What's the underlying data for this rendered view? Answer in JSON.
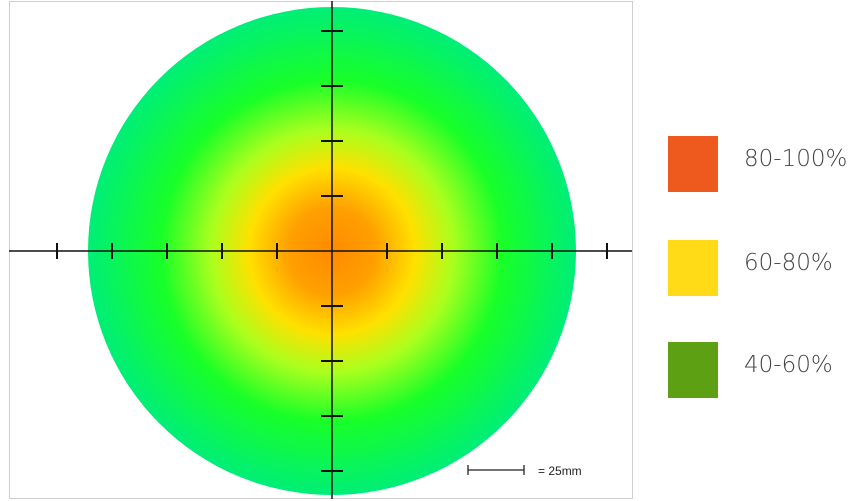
{
  "chart_data": {
    "type": "heatmap",
    "shape": "circular",
    "scale_bar": {
      "label": "= 25mm",
      "length_mm": 25
    },
    "axes": {
      "tick_spacing_mm": 25,
      "grid": false
    },
    "legend": [
      {
        "label": "80-100%",
        "color": "#ee5a1e"
      },
      {
        "label": "60-80%",
        "color": "#ffdb17"
      },
      {
        "label": "40-60%",
        "color": "#5ea014"
      }
    ],
    "gradient_colors": [
      "#ff8c00",
      "#ffb000",
      "#ffe000",
      "#b0ff20",
      "#10ff30",
      "#00f070"
    ]
  }
}
